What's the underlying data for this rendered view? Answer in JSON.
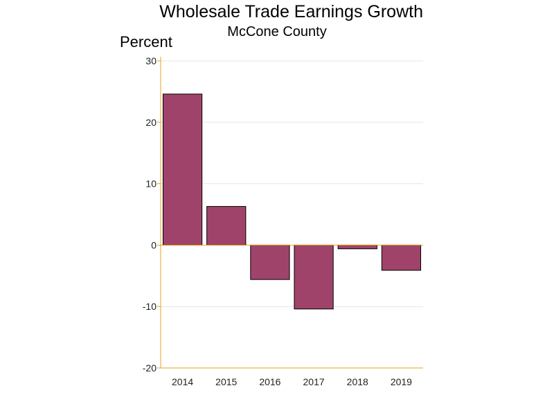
{
  "chart_data": {
    "type": "bar",
    "title": "Wholesale Trade Earnings Growth",
    "subtitle": "McCone County",
    "ylabel": "Percent",
    "xlabel": "",
    "categories": [
      "2014",
      "2015",
      "2016",
      "2017",
      "2018",
      "2019"
    ],
    "values": [
      24.6,
      6.3,
      -5.6,
      -10.4,
      -0.6,
      -4.1
    ],
    "ylim": [
      -20,
      30
    ],
    "yticks": [
      "30",
      "20",
      "10",
      "0",
      "-10",
      "-20"
    ],
    "grid": true,
    "legend": "none",
    "colors": {
      "bar_fill": "#a0436a",
      "bar_stroke": "#000000",
      "axis": "#e8a020",
      "grid": "#e6e6e6"
    }
  }
}
